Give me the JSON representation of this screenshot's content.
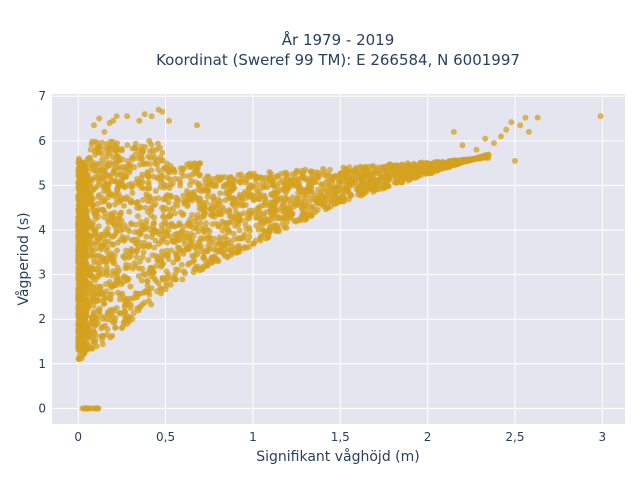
{
  "chart_data": {
    "type": "scatter",
    "title_line1": "År 1979 - 2019",
    "title_line2": "Koordinat (Sweref 99 TM): E 266584, N 6001997",
    "xlabel": "Signifikant våghöjd (m)",
    "ylabel": "Vågperiod (s)",
    "xlim": [
      -0.15,
      3.13
    ],
    "ylim": [
      -0.35,
      7.05
    ],
    "x_ticks": [
      0,
      0.5,
      1,
      1.5,
      2,
      2.5,
      3
    ],
    "x_tick_labels": [
      "0",
      "0,5",
      "1",
      "1,5",
      "2",
      "2,5",
      "3"
    ],
    "y_ticks": [
      0,
      1,
      2,
      3,
      4,
      5,
      6,
      7
    ],
    "y_tick_labels": [
      "0",
      "1",
      "2",
      "3",
      "4",
      "5",
      "6",
      "7"
    ],
    "grid": true,
    "legend": "none",
    "marker_color": "#d4a21f",
    "plot_bg": "#e5e5ef",
    "outlier_points": [
      [
        2.99,
        6.55
      ],
      [
        2.63,
        6.52
      ],
      [
        2.56,
        6.52
      ],
      [
        2.53,
        6.35
      ],
      [
        2.48,
        6.42
      ],
      [
        2.45,
        6.25
      ],
      [
        2.42,
        6.1
      ],
      [
        2.38,
        5.95
      ],
      [
        2.5,
        5.55
      ],
      [
        2.58,
        6.2
      ],
      [
        2.33,
        6.05
      ],
      [
        2.28,
        5.8
      ],
      [
        2.2,
        5.9
      ],
      [
        2.15,
        6.2
      ],
      [
        0.48,
        6.65
      ],
      [
        0.46,
        6.7
      ],
      [
        0.38,
        6.6
      ],
      [
        0.42,
        6.55
      ],
      [
        0.52,
        6.45
      ],
      [
        0.68,
        6.35
      ],
      [
        0.28,
        6.55
      ],
      [
        0.2,
        6.45
      ],
      [
        0.22,
        6.55
      ],
      [
        0.18,
        6.4
      ],
      [
        0.09,
        6.35
      ],
      [
        0.12,
        6.5
      ],
      [
        0.15,
        6.2
      ],
      [
        0.35,
        6.45
      ]
    ]
  }
}
